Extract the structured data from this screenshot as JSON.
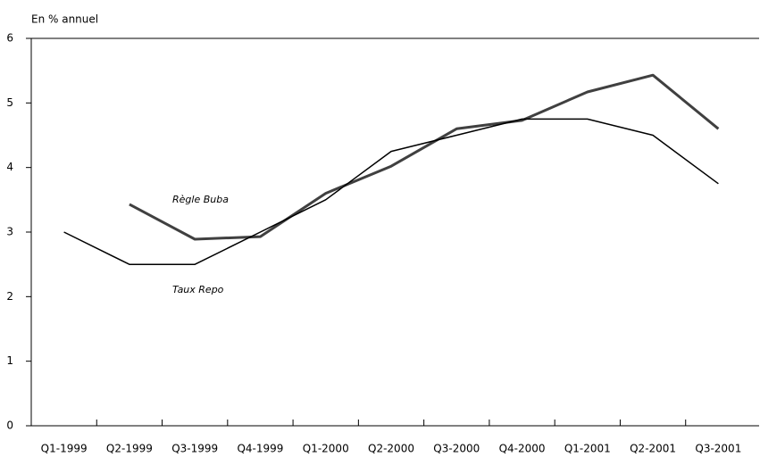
{
  "chart_data": {
    "type": "line",
    "y_label": "En % annuel",
    "categories": [
      "Q1-1999",
      "Q2-1999",
      "Q3-1999",
      "Q4-1999",
      "Q1-2000",
      "Q2-2000",
      "Q3-2000",
      "Q4-2000",
      "Q1-2001",
      "Q2-2001",
      "Q3-2001"
    ],
    "series": [
      {
        "name": "Règle Buba",
        "color": "#404040",
        "values": [
          null,
          3.43,
          2.89,
          2.93,
          3.6,
          4.02,
          4.6,
          4.73,
          5.17,
          5.43,
          4.6
        ]
      },
      {
        "name": "Taux Repo",
        "color": "#000000",
        "values": [
          3.0,
          2.5,
          2.5,
          3.0,
          3.5,
          4.25,
          4.5,
          4.75,
          4.75,
          4.5,
          3.75
        ]
      }
    ],
    "ylim": [
      0,
      6
    ],
    "yticks": [
      0,
      1,
      2,
      3,
      4,
      5,
      6
    ],
    "grid": false
  }
}
